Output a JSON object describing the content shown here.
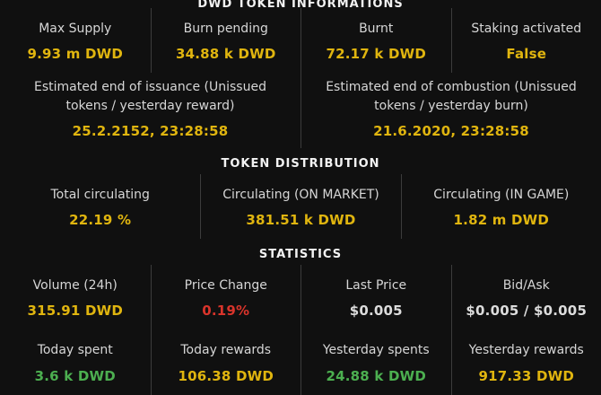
{
  "title_bar": {
    "title": "DWD TOKEN INFORMATIONS"
  },
  "colors": {
    "gold": "#e0b50f",
    "green": "#4caf50",
    "red": "#d9342b",
    "label": "#d6d6d6",
    "plain": "#dcdcdc",
    "background": "#101010",
    "divider": "#3c3c3c"
  },
  "token_info": {
    "row1": [
      {
        "label": "Max Supply",
        "value": "9.93 m DWD"
      },
      {
        "label": "Burn pending",
        "value": "34.88 k DWD"
      },
      {
        "label": "Burnt",
        "value": "72.17 k DWD"
      },
      {
        "label": "Staking activated",
        "value": "False"
      }
    ],
    "row2": [
      {
        "label": "Estimated end of issuance (Unissued tokens / yesterday reward)",
        "value": "25.2.2152, 23:28:58"
      },
      {
        "label": "Estimated end of combustion (Unissued tokens / yesterday burn)",
        "value": "21.6.2020, 23:28:58"
      }
    ]
  },
  "token_distribution": {
    "heading": "TOKEN DISTRIBUTION",
    "cells": [
      {
        "label": "Total circulating",
        "value": "22.19 %"
      },
      {
        "label": "Circulating (ON MARKET)",
        "value": "381.51 k DWD"
      },
      {
        "label": "Circulating (IN GAME)",
        "value": "1.82 m DWD"
      }
    ]
  },
  "statistics": {
    "heading": "STATISTICS",
    "row1": [
      {
        "label": "Volume (24h)",
        "value": "315.91 DWD"
      },
      {
        "label": "Price Change",
        "value": "0.19%"
      },
      {
        "label": "Last Price",
        "value": "$0.005"
      },
      {
        "label": "Bid/Ask",
        "value": "$0.005 / $0.005"
      }
    ],
    "row2": [
      {
        "label": "Today spent",
        "value": "3.6 k DWD"
      },
      {
        "label": "Today rewards",
        "value": "106.38 DWD"
      },
      {
        "label": "Yesterday spents",
        "value": "24.88 k DWD"
      },
      {
        "label": "Yesterday rewards",
        "value": "917.33 DWD"
      }
    ]
  }
}
